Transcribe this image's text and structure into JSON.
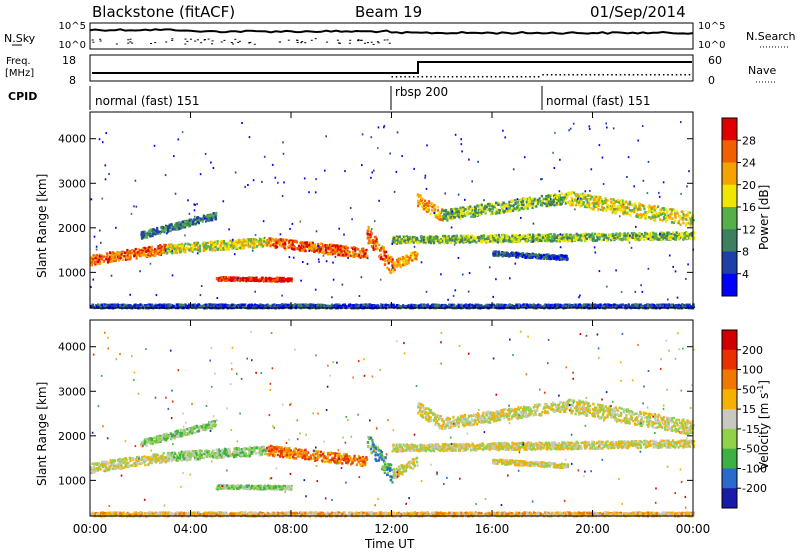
{
  "header": {
    "station": "Blackstone (fitACF)",
    "beam": "Beam 19",
    "date": "01/Sep/2014"
  },
  "noise_panel": {
    "left_label": "N.Sky",
    "right_label": "N.Search",
    "left_ticks": [
      "10^5",
      "10^0"
    ],
    "right_ticks": [
      "10^5",
      "10^0"
    ]
  },
  "freq_panel": {
    "left_label_1": "Freq.",
    "left_label_2": "[MHz]",
    "right_label": "Nave",
    "left_ticks": [
      "18",
      "8"
    ],
    "right_ticks": [
      "60",
      "0"
    ]
  },
  "cpid": {
    "label": "CPID",
    "segments": [
      {
        "name": "normal (fast) 151",
        "start_hour": 0
      },
      {
        "name": "rbsp 200",
        "start_hour": 12
      },
      {
        "name": "normal (fast) 151",
        "start_hour": 18
      }
    ]
  },
  "chart_data": [
    {
      "type": "heatmap",
      "ylabel": "Slant Range [km]",
      "ylim": [
        200,
        4600
      ],
      "yticks": [
        "1000",
        "2000",
        "3000",
        "4000"
      ],
      "xlim": [
        0,
        24
      ],
      "colorbar": {
        "label": "Power [dB]",
        "ticks": [
          "4",
          "8",
          "12",
          "16",
          "20",
          "24",
          "28"
        ],
        "colors": [
          "#0000ff",
          "#1f3fa8",
          "#3d7f5e",
          "#55b04a",
          "#f2e600",
          "#f5a300",
          "#f06000",
          "#e00000"
        ]
      }
    },
    {
      "type": "heatmap",
      "ylabel": "Slant Range [km]",
      "ylim": [
        200,
        4600
      ],
      "yticks": [
        "1000",
        "2000",
        "3000",
        "4000"
      ],
      "xlim": [
        0,
        24
      ],
      "colorbar": {
        "label_main": "Velocity [m s",
        "label_sup": "-1",
        "label_end": "]",
        "ticks": [
          "200",
          "100",
          "50",
          "15",
          "-15",
          "-50",
          "-100",
          "-200"
        ],
        "colors": [
          "#1a1aa8",
          "#2a6acb",
          "#3cb043",
          "#8fd24a",
          "#c8c8c0",
          "#f5b000",
          "#f07800",
          "#e83000",
          "#d00000"
        ]
      }
    }
  ],
  "xaxis": {
    "label": "Time UT",
    "ticks": [
      "00:00",
      "04:00",
      "08:00",
      "12:00",
      "16:00",
      "20:00",
      "00:00"
    ]
  }
}
